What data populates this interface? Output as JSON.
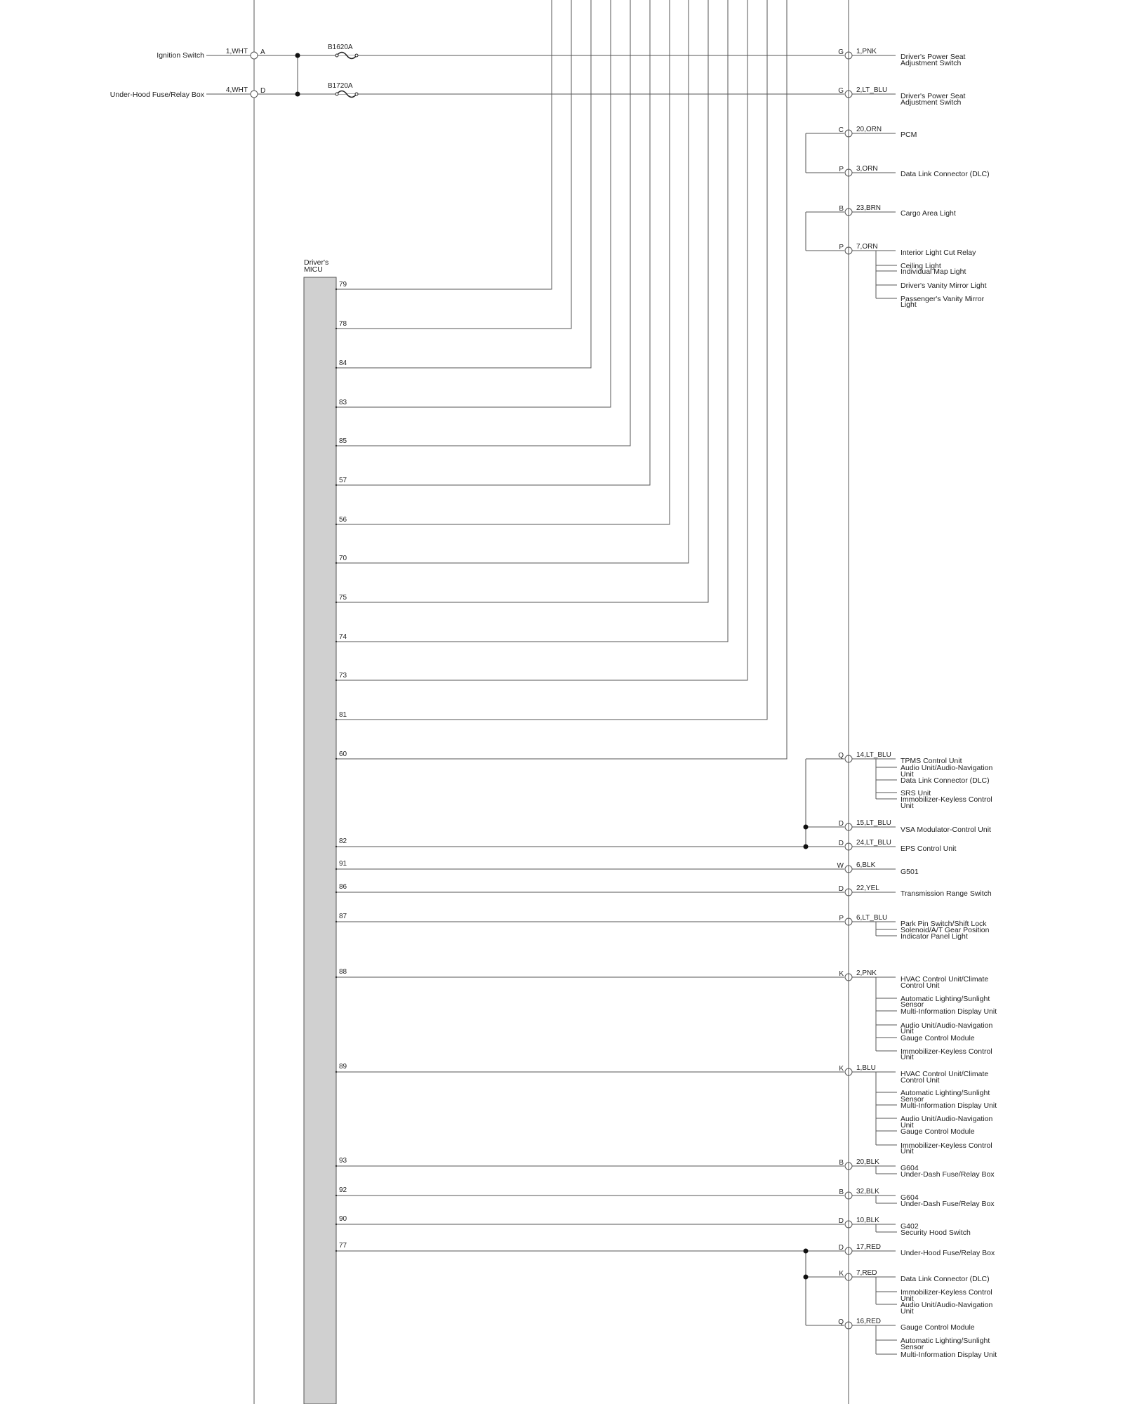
{
  "left_inputs": [
    {
      "source": "Ignition Switch",
      "wire": "1,WHT",
      "term": "A",
      "fuse": "B1620A"
    },
    {
      "source": "Under-Hood Fuse/Relay Box",
      "wire": "4,WHT",
      "term": "D",
      "fuse": "B1720A"
    }
  ],
  "micu": {
    "label_line1": "Driver's",
    "label_line2": "MICU"
  },
  "top_pins": [
    "79",
    "78",
    "84",
    "83",
    "85",
    "57",
    "56",
    "70",
    "75",
    "74",
    "73",
    "81",
    "60"
  ],
  "right_connections": [
    {
      "term": "G",
      "wire": "1,PNK",
      "dests": [
        "Driver's Power Seat",
        "Adjustment Switch"
      ]
    },
    {
      "term": "G",
      "wire": "2,LT_BLU",
      "dests": [
        "Driver's Power Seat",
        "Adjustment Switch"
      ]
    },
    {
      "term": "C",
      "wire": "20,ORN",
      "dests": [
        "PCM"
      ]
    },
    {
      "term": "P",
      "wire": "3,ORN",
      "dests": [
        "Data Link Connector (DLC)"
      ]
    },
    {
      "term": "B",
      "wire": "23,BRN",
      "dests": [
        "Cargo Area Light"
      ]
    },
    {
      "term": "P",
      "wire": "7,ORN",
      "dests": [
        "Interior Light Cut Relay",
        "Ceiling Light",
        "Individual Map Light",
        "Driver's Vanity Mirror Light",
        "Passenger's Vanity Mirror",
        "Light"
      ]
    },
    {
      "term": "Q",
      "wire": "14,LT_BLU",
      "dests": [
        "TPMS Control Unit",
        "Audio Unit/Audio-Navigation",
        "Unit",
        "Data Link Connector (DLC)",
        "SRS Unit",
        "Immobilizer-Keyless Control",
        "Unit"
      ]
    },
    {
      "term": "D",
      "wire": "15,LT_BLU",
      "dests": [
        "VSA Modulator-Control Unit"
      ]
    },
    {
      "term": "D",
      "wire": "24,LT_BLU",
      "dests": [
        "EPS Control Unit"
      ]
    },
    {
      "term": "W",
      "wire": "6,BLK",
      "dests": [
        "G501"
      ]
    },
    {
      "term": "D",
      "wire": "22,YEL",
      "dests": [
        "Transmission Range Switch"
      ]
    },
    {
      "term": "P",
      "wire": "6,LT_BLU",
      "dests": [
        "Park Pin Switch/Shift Lock",
        "Solenoid/A/T Gear Position",
        "Indicator Panel Light"
      ]
    },
    {
      "term": "K",
      "wire": "2,PNK",
      "dests": [
        "HVAC Control Unit/Climate",
        "Control Unit",
        "Automatic Lighting/Sunlight",
        "Sensor",
        "Multi-Information Display Unit",
        "Audio Unit/Audio-Navigation",
        "Unit",
        "Gauge Control Module",
        "Immobilizer-Keyless Control",
        "Unit"
      ]
    },
    {
      "term": "K",
      "wire": "1,BLU",
      "dests": [
        "HVAC Control Unit/Climate",
        "Control Unit",
        "Automatic Lighting/Sunlight",
        "Sensor",
        "Multi-Information Display Unit",
        "Audio Unit/Audio-Navigation",
        "Unit",
        "Gauge Control Module",
        "Immobilizer-Keyless Control",
        "Unit"
      ]
    },
    {
      "term": "B",
      "wire": "20,BLK",
      "dests": [
        "G604",
        "Under-Dash Fuse/Relay Box"
      ]
    },
    {
      "term": "B",
      "wire": "32,BLK",
      "dests": [
        "G604",
        "Under-Dash Fuse/Relay Box"
      ]
    },
    {
      "term": "D",
      "wire": "10,BLK",
      "dests": [
        "G402",
        "Security Hood Switch"
      ]
    },
    {
      "term": "D",
      "wire": "17,RED",
      "dests": [
        "Under-Hood Fuse/Relay Box"
      ]
    },
    {
      "term": "K",
      "wire": "7,RED",
      "dests": [
        "Data Link Connector (DLC)",
        "Immobilizer-Keyless Control",
        "Unit",
        "Audio Unit/Audio-Navigation",
        "Unit"
      ]
    },
    {
      "term": "Q",
      "wire": "16,RED",
      "dests": [
        "Gauge Control Module",
        "Automatic Lighting/Sunlight",
        "Sensor",
        "Multi-Information Display Unit"
      ]
    }
  ],
  "direct_pins": [
    "82",
    "91",
    "86",
    "87",
    "88",
    "89",
    "93",
    "92",
    "90",
    "77"
  ]
}
